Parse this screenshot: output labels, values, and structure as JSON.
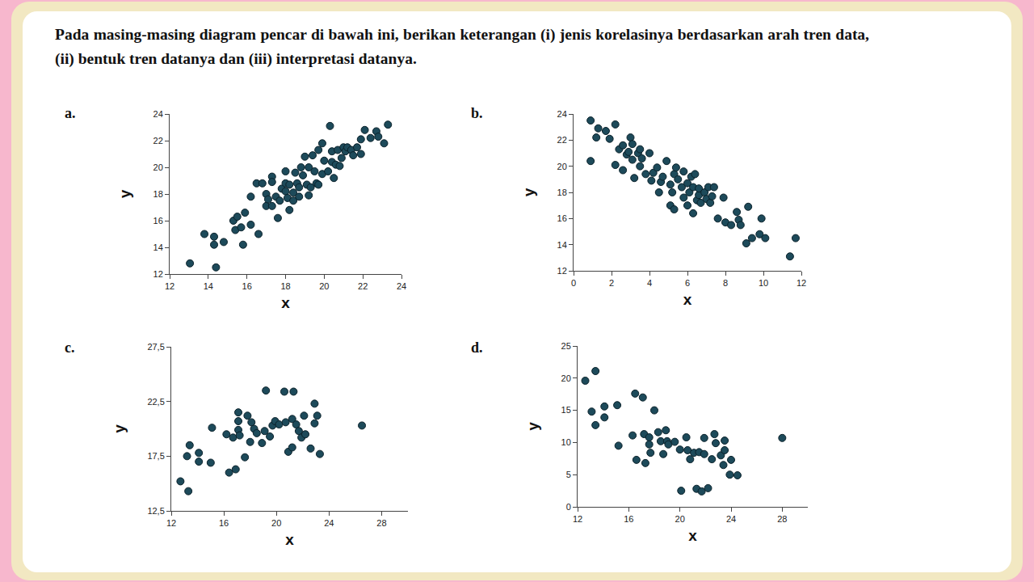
{
  "instruction": "Pada masing-masing diagram pencar di bawah ini, berikan keterangan (i) jenis korelasinya berdasarkan arah tren data, (ii) bentuk tren datanya dan (iii) interpretasi datanya.",
  "chart_data": [
    {
      "type": "scatter",
      "title": "a.",
      "xlabel": "x",
      "ylabel": "y",
      "color": "#1d4a5a",
      "marker": "circle",
      "grid": false,
      "xlim": [
        12,
        24
      ],
      "xticks": [
        12,
        14,
        16,
        18,
        20,
        22,
        24
      ],
      "ylim": [
        12,
        24
      ],
      "yticks": [
        12,
        14,
        16,
        18,
        20,
        22,
        24
      ],
      "x": [
        13.05,
        14.4,
        13.8,
        14.3,
        14.3,
        14.8,
        15.3,
        15.4,
        15.5,
        15.7,
        15.9,
        15.8,
        16.2,
        16.2,
        16.6,
        16.5,
        16.8,
        17.0,
        17.0,
        17.1,
        17.3,
        17.3,
        17.3,
        17.5,
        17.6,
        17.7,
        17.8,
        18.0,
        18.0,
        18.0,
        18.1,
        18.2,
        18.2,
        18.4,
        18.4,
        18.5,
        18.6,
        18.7,
        18.7,
        18.8,
        18.9,
        19.0,
        19.1,
        19.2,
        19.2,
        19.3,
        19.4,
        19.5,
        19.6,
        19.7,
        19.7,
        19.9,
        19.9,
        20.0,
        20.2,
        20.3,
        20.4,
        20.4,
        20.5,
        20.6,
        20.7,
        20.8,
        20.9,
        21.0,
        21.1,
        21.2,
        21.4,
        21.5,
        21.7,
        21.9,
        21.9,
        22.1,
        22.4,
        22.7,
        22.8,
        23.1,
        23.3
      ],
      "values": [
        12.8,
        12.5,
        15.0,
        14.8,
        14.2,
        14.4,
        16.0,
        15.3,
        16.3,
        15.5,
        16.6,
        14.2,
        17.8,
        15.7,
        15.0,
        18.8,
        18.8,
        18.0,
        17.1,
        17.6,
        19.3,
        18.9,
        17.1,
        17.8,
        16.2,
        17.5,
        18.4,
        19.7,
        18.2,
        18.8,
        17.7,
        16.8,
        18.7,
        17.5,
        18.1,
        19.6,
        18.8,
        17.8,
        18.5,
        20.0,
        19.4,
        20.8,
        18.7,
        17.9,
        20.0,
        18.5,
        20.9,
        19.7,
        18.8,
        21.3,
        18.7,
        21.8,
        19.5,
        20.5,
        19.7,
        23.1,
        20.4,
        21.2,
        19.2,
        20.2,
        21.3,
        20.1,
        20.7,
        21.5,
        21.2,
        21.5,
        21.3,
        20.9,
        21.5,
        21.0,
        22.1,
        22.8,
        22.2,
        22.7,
        22.3,
        21.8,
        23.2
      ]
    },
    {
      "type": "scatter",
      "title": "b.",
      "xlabel": "x",
      "ylabel": "y",
      "color": "#1d4a5a",
      "marker": "circle",
      "grid": false,
      "xlim": [
        0,
        12
      ],
      "xticks": [
        0,
        2,
        4,
        6,
        8,
        10,
        12
      ],
      "ylim": [
        12,
        24
      ],
      "yticks": [
        12,
        14,
        16,
        18,
        20,
        22,
        24
      ],
      "x": [
        0.9,
        0.9,
        1.3,
        1.7,
        1.2,
        1.9,
        2.2,
        2.2,
        2.4,
        2.6,
        2.6,
        2.8,
        2.9,
        3.0,
        3.1,
        3.1,
        3.2,
        3.4,
        3.5,
        3.5,
        3.6,
        3.8,
        4.0,
        4.1,
        4.2,
        4.4,
        4.5,
        4.6,
        4.7,
        4.9,
        5.1,
        5.1,
        5.2,
        5.3,
        5.3,
        5.4,
        5.5,
        5.7,
        5.8,
        5.8,
        6.0,
        6.0,
        6.1,
        6.2,
        6.3,
        6.3,
        6.4,
        6.5,
        6.6,
        6.6,
        6.7,
        6.9,
        7.0,
        7.1,
        7.2,
        7.4,
        7.3,
        7.6,
        7.9,
        8.0,
        8.3,
        8.6,
        8.7,
        8.8,
        9.1,
        9.2,
        9.4,
        9.8,
        9.9,
        10.1,
        11.4,
        11.7
      ],
      "values": [
        23.5,
        20.4,
        22.9,
        22.7,
        22.2,
        22.1,
        23.2,
        20.1,
        21.3,
        19.7,
        21.6,
        20.9,
        21.1,
        22.2,
        21.7,
        20.5,
        19.1,
        21.0,
        20.0,
        21.3,
        20.6,
        19.4,
        21.0,
        18.9,
        19.5,
        19.9,
        18.0,
        18.8,
        19.2,
        20.4,
        18.6,
        17.0,
        18.0,
        16.7,
        19.4,
        19.9,
        19.0,
        18.4,
        17.6,
        19.6,
        18.7,
        17.0,
        18.0,
        19.2,
        16.4,
        18.4,
        19.4,
        17.4,
        17.8,
        18.3,
        17.2,
        18.0,
        17.5,
        18.4,
        17.2,
        18.4,
        17.7,
        16.0,
        17.6,
        15.7,
        15.5,
        16.5,
        15.9,
        15.5,
        14.1,
        16.9,
        14.5,
        14.8,
        16.0,
        14.5,
        13.1,
        14.5
      ]
    },
    {
      "type": "scatter",
      "title": "c.",
      "xlabel": "x",
      "ylabel": "y",
      "color": "#1d4a5a",
      "marker": "circle",
      "grid": false,
      "xlim": [
        12,
        30
      ],
      "xticks": [
        12,
        16,
        20,
        24,
        28
      ],
      "ylim": [
        12.5,
        27.5
      ],
      "yticks": [
        {
          "value": 12.5,
          "label": "12,5"
        },
        {
          "value": 17.5,
          "label": "17,5"
        },
        {
          "value": 22.5,
          "label": "22,5"
        },
        {
          "value": 27.5,
          "label": "27,5"
        }
      ],
      "x": [
        12.7,
        13.3,
        13.4,
        13.2,
        14.1,
        14.1,
        15.0,
        15.1,
        16.2,
        16.4,
        16.7,
        16.9,
        17.1,
        17.1,
        17.1,
        17.2,
        17.8,
        17.6,
        18.0,
        18.1,
        18.3,
        18.5,
        18.9,
        19.1,
        19.2,
        19.5,
        19.7,
        19.9,
        20.2,
        20.6,
        20.7,
        20.9,
        21.2,
        21.3,
        21.2,
        21.5,
        21.7,
        21.9,
        22.1,
        22.2,
        22.6,
        22.9,
        22.9,
        23.1,
        23.3,
        26.5
      ],
      "values": [
        15.2,
        14.3,
        18.5,
        17.5,
        17.8,
        17.0,
        16.9,
        20.1,
        19.5,
        16.0,
        19.2,
        16.3,
        21.5,
        20.7,
        19.9,
        19.4,
        21.2,
        17.4,
        18.8,
        20.6,
        20.0,
        19.6,
        18.7,
        19.8,
        23.5,
        19.3,
        20.3,
        20.7,
        20.4,
        23.4,
        20.6,
        17.9,
        20.9,
        23.4,
        18.3,
        20.4,
        19.8,
        19.2,
        21.2,
        19.5,
        18.2,
        20.5,
        22.3,
        21.2,
        17.7,
        20.3
      ]
    },
    {
      "type": "scatter",
      "title": "d.",
      "xlabel": "x",
      "ylabel": "y",
      "color": "#1d4a5a",
      "marker": "circle",
      "grid": false,
      "xlim": [
        12,
        30
      ],
      "xticks": [
        12,
        16,
        20,
        24,
        28
      ],
      "ylim": [
        0,
        25
      ],
      "yticks": [
        0,
        5,
        10,
        15,
        20,
        25
      ],
      "x": [
        12.6,
        13.4,
        13.1,
        13.4,
        14.1,
        14.1,
        15.1,
        15.2,
        16.3,
        16.5,
        17.1,
        16.6,
        17.2,
        17.3,
        17.6,
        17.6,
        17.7,
        18.0,
        18.3,
        18.5,
        18.7,
        18.9,
        19.0,
        19.1,
        19.6,
        20.0,
        20.1,
        20.5,
        20.6,
        20.8,
        21.1,
        21.3,
        21.5,
        21.7,
        21.9,
        21.9,
        22.2,
        22.5,
        22.7,
        22.8,
        23.2,
        23.4,
        23.5,
        23.5,
        23.9,
        24.0,
        24.5,
        28.0
      ],
      "values": [
        19.6,
        21.1,
        14.8,
        12.7,
        15.6,
        13.9,
        15.8,
        9.5,
        11.1,
        17.6,
        17.0,
        7.3,
        11.3,
        6.8,
        10.8,
        9.7,
        8.4,
        15.0,
        11.6,
        10.2,
        8.2,
        11.9,
        10.2,
        9.7,
        10.1,
        8.9,
        2.5,
        10.8,
        8.8,
        7.4,
        8.4,
        2.8,
        8.5,
        2.4,
        10.7,
        8.2,
        2.9,
        7.4,
        11.3,
        9.9,
        8.0,
        6.5,
        10.3,
        8.8,
        5.0,
        7.3,
        4.9,
        10.7
      ]
    }
  ]
}
